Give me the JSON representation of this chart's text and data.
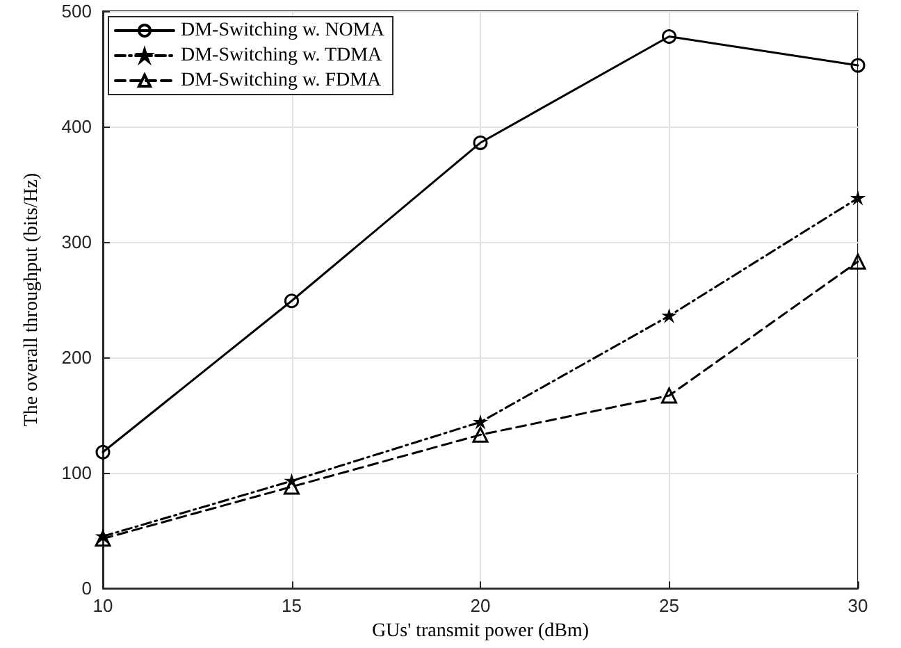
{
  "chart_data": {
    "type": "line",
    "xlabel": "GUs' transmit power (dBm)",
    "ylabel": "The overall throughput (bits/Hz)",
    "x": [
      10,
      15,
      20,
      25,
      30
    ],
    "series": [
      {
        "name": "DM-Switching w. NOMA",
        "color": "#000000",
        "marker": "circle",
        "line_style": "solid",
        "values": [
          118,
          249,
          386,
          478,
          453
        ]
      },
      {
        "name": "DM-Switching w. TDMA",
        "color": "#000000",
        "marker": "star",
        "line_style": "dashdot",
        "values": [
          45,
          93,
          144,
          236,
          338
        ]
      },
      {
        "name": "DM-Switching w. FDMA",
        "color": "#000000",
        "marker": "triangle",
        "line_style": "dashed",
        "values": [
          43,
          88,
          133,
          167,
          283
        ]
      }
    ],
    "xlim": [
      10,
      30
    ],
    "xticks": [
      10,
      15,
      20,
      25,
      30
    ],
    "ylim": [
      0,
      500
    ],
    "yticks": [
      0,
      100,
      200,
      300,
      400,
      500
    ],
    "grid": true,
    "legend": "top left"
  }
}
